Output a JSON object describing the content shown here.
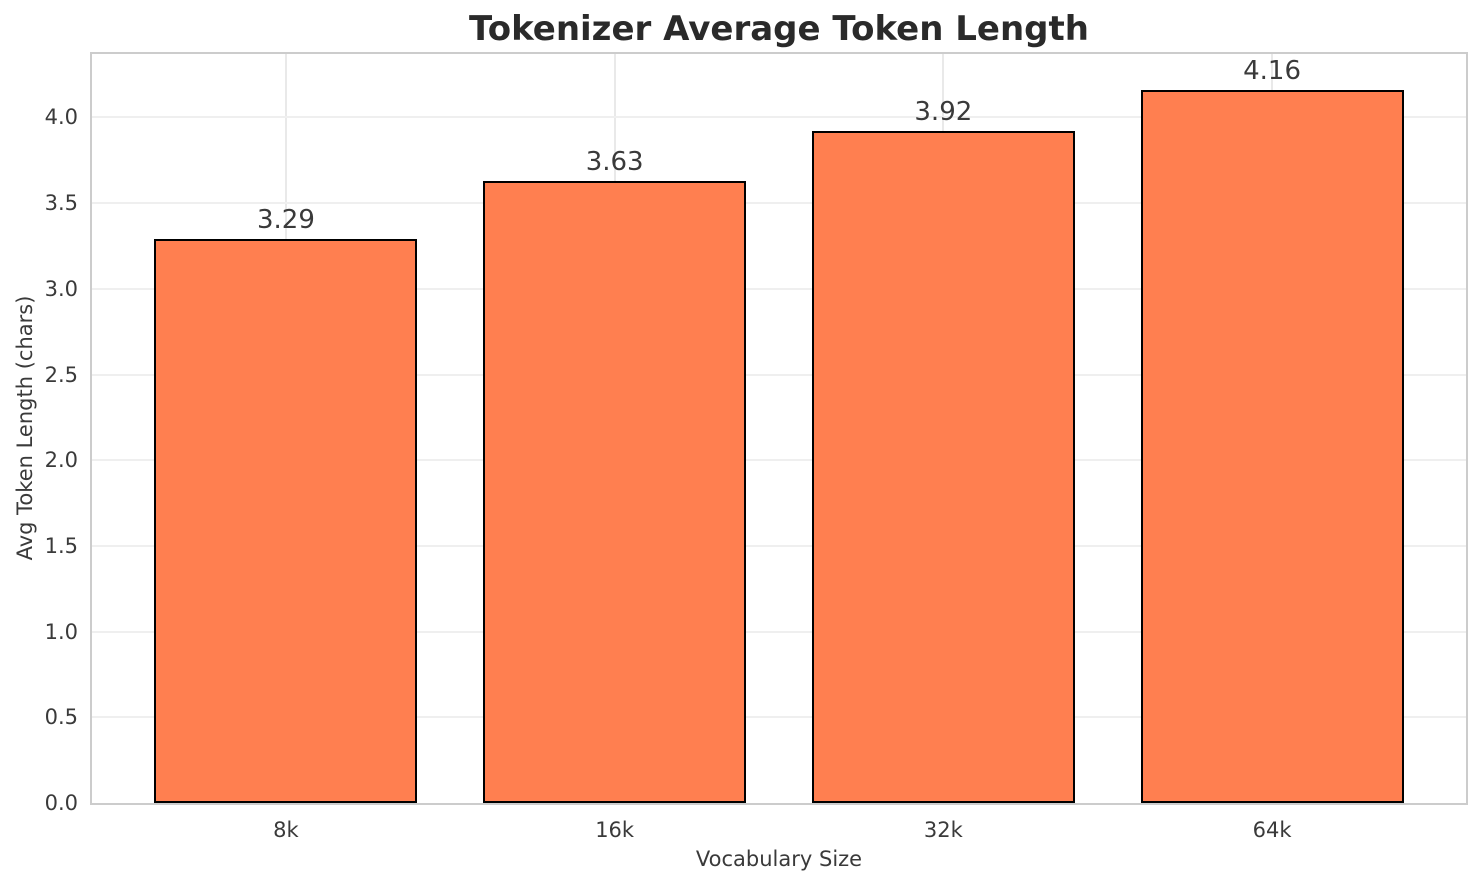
{
  "chart_data": {
    "type": "bar",
    "title": "Tokenizer Average Token Length",
    "xlabel": "Vocabulary Size",
    "ylabel": "Avg Token Length (chars)",
    "categories": [
      "8k",
      "16k",
      "32k",
      "64k"
    ],
    "values": [
      3.29,
      3.63,
      3.92,
      4.16
    ],
    "value_labels": [
      "3.29",
      "3.63",
      "3.92",
      "4.16"
    ],
    "ylim": [
      0,
      4.37
    ],
    "xlim": [
      -0.59,
      3.59
    ],
    "bar_width_units": 0.8,
    "yticks": [
      0.0,
      0.5,
      1.0,
      1.5,
      2.0,
      2.5,
      3.0,
      3.5,
      4.0
    ],
    "ytick_labels": [
      "0.0",
      "0.5",
      "1.0",
      "1.5",
      "2.0",
      "2.5",
      "3.0",
      "3.5",
      "4.0"
    ],
    "grid": true,
    "legend": null,
    "colors": {
      "bar_fill": "#FF7F50",
      "bar_edge": "#000000",
      "grid_h": "#efefef",
      "grid_v": "#e9e9e9",
      "spine": "#cccccc",
      "text": "#3a3a3a",
      "title": "#2a2a2a",
      "background": "#ffffff"
    }
  }
}
